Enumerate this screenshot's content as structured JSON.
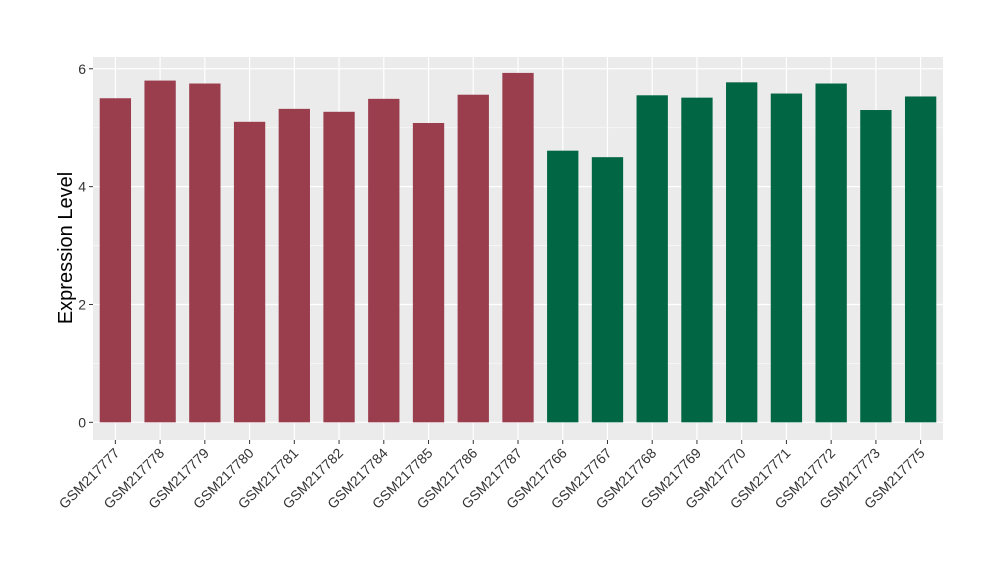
{
  "chart_data": {
    "type": "bar",
    "title": "",
    "xlabel": "",
    "ylabel": "Expression Level",
    "ylim": [
      -0.3,
      6.2
    ],
    "yticks": [
      0,
      2,
      4,
      6
    ],
    "grid": true,
    "panel_background": "#EBEBEB",
    "categories": [
      "GSM217777",
      "GSM217778",
      "GSM217779",
      "GSM217780",
      "GSM217781",
      "GSM217782",
      "GSM217784",
      "GSM217785",
      "GSM217786",
      "GSM217787",
      "GSM217766",
      "GSM217767",
      "GSM217768",
      "GSM217769",
      "GSM217770",
      "GSM217771",
      "GSM217772",
      "GSM217773",
      "GSM217775"
    ],
    "values": [
      5.5,
      5.8,
      5.75,
      5.1,
      5.32,
      5.27,
      5.49,
      5.08,
      5.56,
      5.93,
      4.61,
      4.5,
      5.55,
      5.51,
      5.77,
      5.58,
      5.75,
      5.3,
      5.53
    ],
    "colors": [
      "#9A3E4E",
      "#9A3E4E",
      "#9A3E4E",
      "#9A3E4E",
      "#9A3E4E",
      "#9A3E4E",
      "#9A3E4E",
      "#9A3E4E",
      "#9A3E4E",
      "#9A3E4E",
      "#006644",
      "#006644",
      "#006644",
      "#006644",
      "#006644",
      "#006644",
      "#006644",
      "#006644",
      "#006644"
    ]
  }
}
